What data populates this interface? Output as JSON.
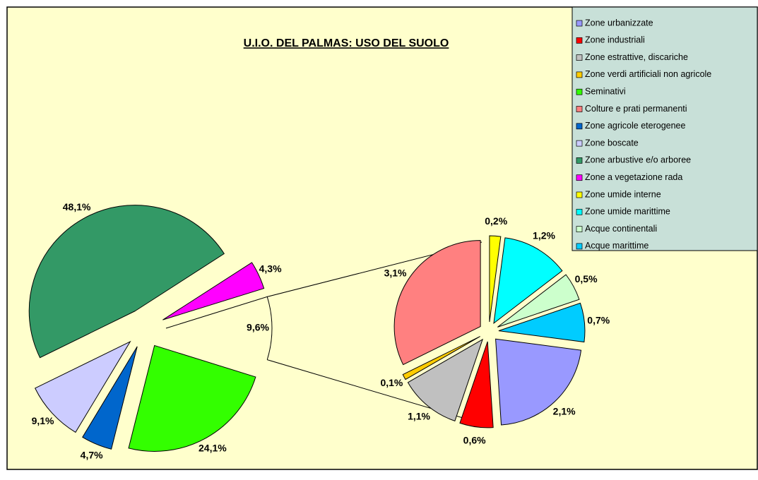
{
  "chart_data": {
    "type": "pie_of_pie",
    "title": "U.I.O. DEL PALMAS: USO DEL SUOLO",
    "categories": [
      "Zone urbanizzate",
      "Zone industriali",
      "Zone estrattive, discariche",
      "Zone verdi artificiali non agricole",
      "Seminativi",
      "Colture e prati permanenti",
      "Zone agricole eterogenee",
      "Zone boscate",
      "Zone arbustive e/o arboree",
      "Zone a vegetazione rada",
      "Zone umide interne",
      "Zone umide marittime",
      "Acque continentali",
      "Acque marittime"
    ],
    "values": [
      2.1,
      0.6,
      1.1,
      0.1,
      24.1,
      3.1,
      4.7,
      9.1,
      48.1,
      4.3,
      0.2,
      1.2,
      0.5,
      0.7
    ],
    "value_labels": [
      "2,1%",
      "0,6%",
      "1,1%",
      "0,1%",
      "24,1%",
      "3,1%",
      "4,7%",
      "9,1%",
      "48,1%",
      "4,3%",
      "0,2%",
      "1,2%",
      "0,5%",
      "0,7%"
    ],
    "colors": [
      "#9999ff",
      "#ff0000",
      "#c0c0c0",
      "#ffcc00",
      "#33ff00",
      "#ff8080",
      "#0066cc",
      "#ccccff",
      "#339966",
      "#ff00ff",
      "#ffff00",
      "#00ffff",
      "#ccffcc",
      "#00ccff"
    ],
    "in_secondary": [
      true,
      true,
      true,
      true,
      false,
      true,
      false,
      false,
      false,
      false,
      true,
      true,
      true,
      true
    ],
    "other_value": 9.6,
    "other_label": "9,6%",
    "legend": "top-right"
  }
}
